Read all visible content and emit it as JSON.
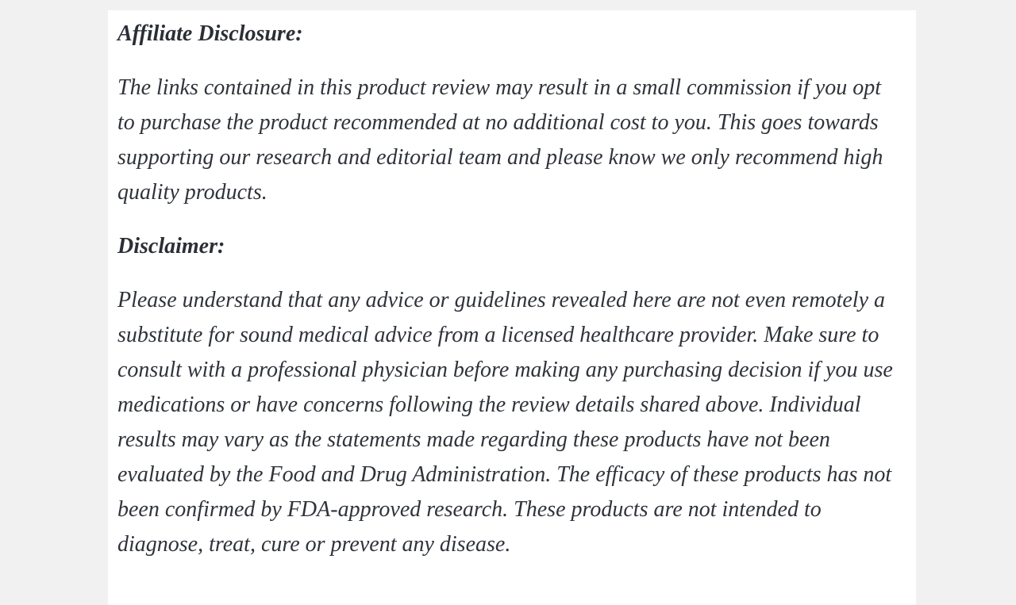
{
  "colors": {
    "page_background": "#f1f1f1",
    "card_background": "#ffffff",
    "heading_text": "#2b2f35",
    "body_text": "#2f333a"
  },
  "sections": [
    {
      "heading": "Affiliate Disclosure:",
      "body": "The links contained in this product review may result in a small commission if you opt to purchase the product recommended at no additional cost to you. This goes towards supporting our research and editorial team and please know we only recommend high quality products."
    },
    {
      "heading": "Disclaimer:",
      "body": "Please understand that any advice or guidelines revealed here are not even remotely a substitute for sound medical advice from a licensed healthcare provider. Make sure to consult with a professional physician before making any purchasing decision if you use medications or have concerns following the review details shared above. Individual results may vary as the statements made regarding these products have not been evaluated by the Food and Drug Administration. The efficacy of these products has not been confirmed by FDA-approved research. These products are not intended to diagnose, treat, cure or prevent any disease."
    }
  ]
}
